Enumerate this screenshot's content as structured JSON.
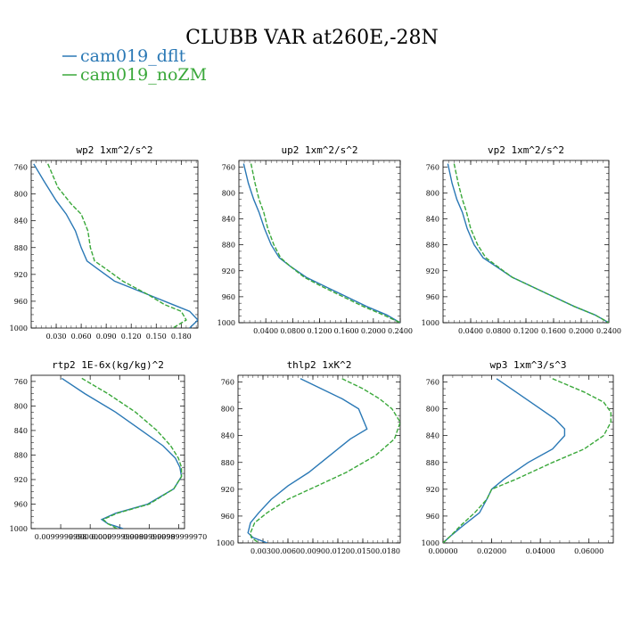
{
  "figure": {
    "title": "CLUBB VAR at260E,-28N",
    "legend": [
      {
        "label": "cam019_dflt",
        "color": "#2a78b5"
      },
      {
        "label": "cam019_noZM",
        "color": "#3aa83a"
      }
    ]
  },
  "chart_data": [
    {
      "type": "line",
      "title": "wp2   1xm^2/s^2",
      "y_ticks": [
        "760",
        "800",
        "840",
        "880",
        "920",
        "960",
        "1000"
      ],
      "x_ticks": [
        "0.030",
        "0.060",
        "0.090",
        "0.120",
        "0.150",
        "0.180"
      ],
      "ylim": [
        1000,
        750
      ],
      "xlim": [
        0.0,
        0.2
      ],
      "series": [
        {
          "name": "cam019_dflt",
          "x": [
            0.003,
            0.015,
            0.03,
            0.042,
            0.053,
            0.06,
            0.067,
            0.08,
            0.1,
            0.14,
            0.17,
            0.19,
            0.2,
            0.19
          ],
          "y": [
            755,
            780,
            810,
            830,
            855,
            880,
            900,
            912,
            930,
            950,
            965,
            975,
            988,
            1000
          ]
        },
        {
          "name": "cam019_noZM",
          "x": [
            0.02,
            0.032,
            0.048,
            0.06,
            0.068,
            0.071,
            0.076,
            0.09,
            0.11,
            0.14,
            0.16,
            0.18,
            0.186,
            0.17
          ],
          "y": [
            755,
            790,
            815,
            830,
            855,
            880,
            900,
            912,
            930,
            950,
            965,
            975,
            988,
            1000
          ]
        }
      ]
    },
    {
      "type": "line",
      "title": "up2   1xm^2/s^2",
      "y_ticks": [
        "760",
        "800",
        "840",
        "880",
        "920",
        "960",
        "1000"
      ],
      "x_ticks": [
        "0.0400",
        "0.0800",
        "0.1200",
        "0.1600",
        "0.2000",
        "0.2400"
      ],
      "ylim": [
        1000,
        750
      ],
      "xlim": [
        0.0,
        0.24
      ],
      "series": [
        {
          "name": "cam019_dflt",
          "x": [
            0.007,
            0.014,
            0.022,
            0.03,
            0.038,
            0.048,
            0.06,
            0.075,
            0.1,
            0.13,
            0.16,
            0.19,
            0.22,
            0.24
          ],
          "y": [
            755,
            785,
            810,
            830,
            855,
            880,
            900,
            912,
            930,
            945,
            960,
            975,
            988,
            1000
          ]
        },
        {
          "name": "cam019_noZM",
          "x": [
            0.018,
            0.024,
            0.03,
            0.037,
            0.043,
            0.052,
            0.062,
            0.075,
            0.097,
            0.125,
            0.155,
            0.185,
            0.215,
            0.24
          ],
          "y": [
            755,
            785,
            810,
            830,
            855,
            880,
            900,
            912,
            930,
            945,
            960,
            975,
            988,
            1000
          ]
        }
      ]
    },
    {
      "type": "line",
      "title": "vp2   1xm^2/s^2",
      "y_ticks": [
        "760",
        "800",
        "840",
        "880",
        "920",
        "960",
        "1000"
      ],
      "x_ticks": [
        "0.0400",
        "0.0800",
        "0.1200",
        "0.1600",
        "0.2000",
        "0.2400"
      ],
      "ylim": [
        1000,
        750
      ],
      "xlim": [
        0.0,
        0.24
      ],
      "series": [
        {
          "name": "cam019_dflt",
          "x": [
            0.007,
            0.013,
            0.02,
            0.028,
            0.035,
            0.045,
            0.058,
            0.075,
            0.1,
            0.13,
            0.16,
            0.19,
            0.22,
            0.24
          ],
          "y": [
            755,
            785,
            810,
            830,
            855,
            880,
            900,
            912,
            930,
            945,
            960,
            975,
            988,
            1000
          ]
        },
        {
          "name": "cam019_noZM",
          "x": [
            0.016,
            0.022,
            0.028,
            0.034,
            0.04,
            0.05,
            0.062,
            0.077,
            0.1,
            0.13,
            0.16,
            0.19,
            0.22,
            0.24
          ],
          "y": [
            755,
            785,
            810,
            830,
            855,
            880,
            900,
            912,
            930,
            945,
            960,
            975,
            988,
            1000
          ]
        }
      ]
    },
    {
      "type": "line",
      "title": "rtp2   1E-6x(kg/kg)^2",
      "y_ticks": [
        "760",
        "800",
        "840",
        "880",
        "920",
        "960",
        "1000"
      ],
      "x_ticks": [
        "0.0099999998",
        "0.00000000",
        "0.00999999980",
        "0.0099999998",
        "0.00999999970"
      ],
      "ylim": [
        1000,
        750
      ],
      "xlim": [
        0.0,
        1.0
      ],
      "series": [
        {
          "name": "cam019_dflt",
          "x": [
            0.2,
            0.35,
            0.55,
            0.72,
            0.86,
            0.94,
            0.97,
            0.98,
            0.93,
            0.76,
            0.55,
            0.46,
            0.5,
            0.6
          ],
          "y": [
            755,
            780,
            810,
            840,
            865,
            885,
            900,
            915,
            935,
            960,
            975,
            985,
            992,
            1000
          ]
        },
        {
          "name": "cam019_noZM",
          "x": [
            0.33,
            0.5,
            0.68,
            0.82,
            0.91,
            0.96,
            0.98,
            0.98,
            0.93,
            0.77,
            0.56,
            0.47,
            0.5,
            0.56
          ],
          "y": [
            755,
            780,
            810,
            840,
            865,
            885,
            900,
            915,
            935,
            960,
            975,
            985,
            992,
            1000
          ]
        }
      ]
    },
    {
      "type": "line",
      "title": "thlp2   1xK^2",
      "y_ticks": [
        "760",
        "800",
        "840",
        "880",
        "920",
        "960",
        "1000"
      ],
      "x_ticks": [
        "0.0030",
        "0.0060",
        "0.0090",
        "0.0120",
        "0.0150",
        "0.0180"
      ],
      "ylim": [
        1000,
        750
      ],
      "xlim": [
        0.0,
        0.0195
      ],
      "series": [
        {
          "name": "cam019_dflt",
          "x": [
            0.0075,
            0.01,
            0.0125,
            0.0145,
            0.0155,
            0.0135,
            0.011,
            0.0085,
            0.006,
            0.004,
            0.0025,
            0.0015,
            0.0012,
            0.0018,
            0.0035
          ],
          "y": [
            755,
            770,
            785,
            800,
            830,
            845,
            870,
            895,
            915,
            935,
            955,
            970,
            985,
            992,
            1000
          ]
        },
        {
          "name": "cam019_noZM",
          "x": [
            0.0125,
            0.015,
            0.017,
            0.0185,
            0.0195,
            0.0188,
            0.0165,
            0.013,
            0.0095,
            0.006,
            0.0035,
            0.002,
            0.0015,
            0.0016,
            0.0025
          ],
          "y": [
            755,
            770,
            785,
            800,
            820,
            845,
            870,
            895,
            915,
            935,
            955,
            970,
            985,
            992,
            1000
          ]
        }
      ]
    },
    {
      "type": "line",
      "title": "wp3   1xm^3/s^3",
      "y_ticks": [
        "760",
        "800",
        "840",
        "880",
        "920",
        "960",
        "1000"
      ],
      "x_ticks": [
        "0.00000",
        "0.02000",
        "0.04000",
        "0.06000"
      ],
      "ylim": [
        1000,
        750
      ],
      "xlim": [
        0.0,
        0.07
      ],
      "series": [
        {
          "name": "cam019_dflt",
          "x": [
            0.022,
            0.03,
            0.04,
            0.046,
            0.05,
            0.05,
            0.045,
            0.035,
            0.025,
            0.02,
            0.018,
            0.015,
            0.008,
            0.003,
            0.0
          ],
          "y": [
            755,
            775,
            800,
            815,
            830,
            840,
            860,
            880,
            905,
            920,
            935,
            955,
            975,
            990,
            1000
          ]
        },
        {
          "name": "cam019_noZM",
          "x": [
            0.045,
            0.058,
            0.066,
            0.069,
            0.069,
            0.066,
            0.058,
            0.045,
            0.03,
            0.02,
            0.018,
            0.013,
            0.007,
            0.003,
            0.0
          ],
          "y": [
            755,
            775,
            790,
            805,
            820,
            840,
            860,
            880,
            905,
            920,
            935,
            955,
            975,
            990,
            1000
          ]
        }
      ]
    }
  ]
}
